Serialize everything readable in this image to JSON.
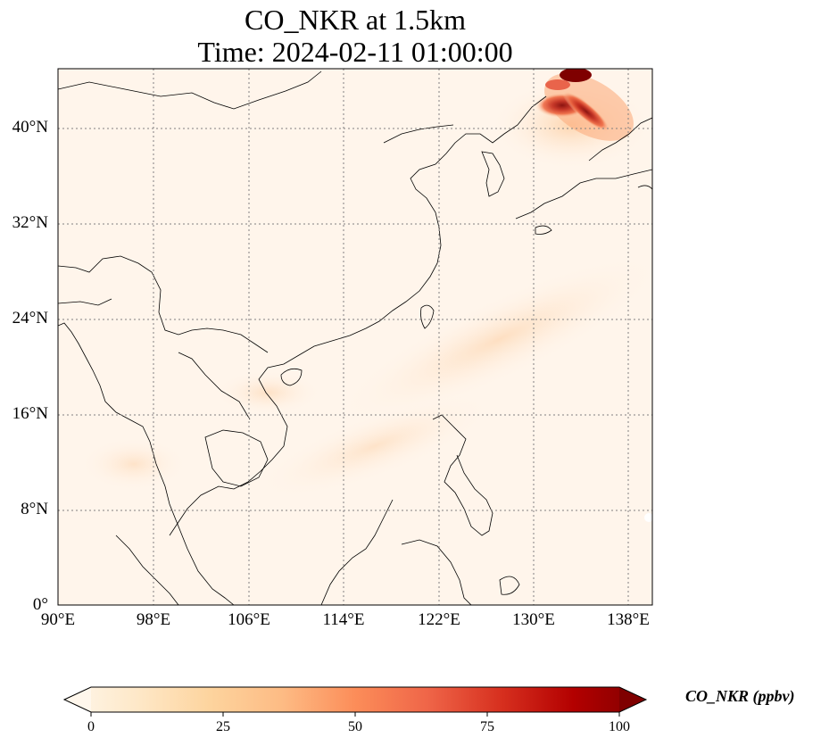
{
  "title": {
    "line1": "CO_NKR at 1.5km",
    "line2": "Time: 2024-02-11 01:00:00"
  },
  "map": {
    "extent": {
      "lon_min": 90,
      "lon_max": 139.5,
      "lat_min": 0,
      "lat_max": 45
    },
    "lat_ticks": [
      "0°",
      "8°N",
      "16°N",
      "24°N",
      "32°N",
      "40°N"
    ],
    "lon_ticks": [
      "90°E",
      "98°E",
      "106°E",
      "114°E",
      "122°E",
      "130°E",
      "138°E"
    ],
    "gridlines": true,
    "gridline_style": "dotted",
    "background_color": "#fff5eb",
    "coastline_color": "#000000"
  },
  "colorbar": {
    "label": "CO_NKR (ppbv)",
    "colormap": "OrRd",
    "ticks": [
      "0",
      "25",
      "50",
      "75",
      "100"
    ],
    "range": [
      0,
      100
    ],
    "extend": "both"
  }
}
